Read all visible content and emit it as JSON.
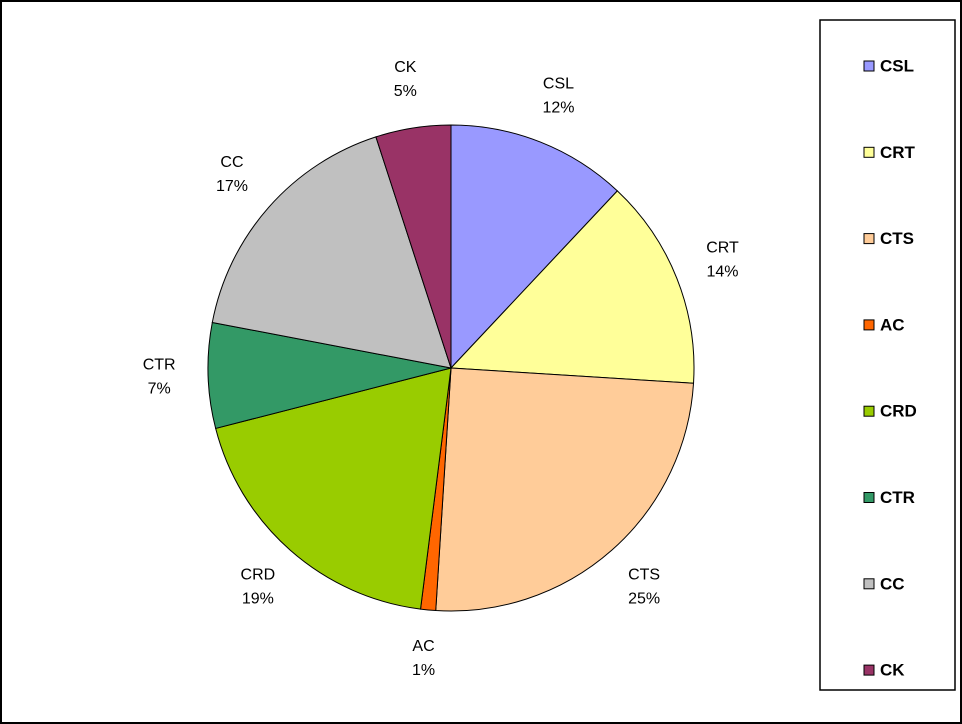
{
  "chart_data": {
    "type": "pie",
    "categories": [
      "CSL",
      "CRT",
      "CTS",
      "AC",
      "CRD",
      "CTR",
      "CC",
      "CK"
    ],
    "values": [
      12,
      14,
      25,
      1,
      19,
      7,
      17,
      5
    ],
    "value_labels": [
      "12%",
      "14%",
      "25%",
      "1%",
      "19%",
      "7%",
      "17%",
      "5%"
    ],
    "colors": [
      "#9999ff",
      "#ffff99",
      "#ffcc99",
      "#ff6600",
      "#99cc00",
      "#339966",
      "#c0c0c0",
      "#993366"
    ],
    "legend": "right"
  }
}
